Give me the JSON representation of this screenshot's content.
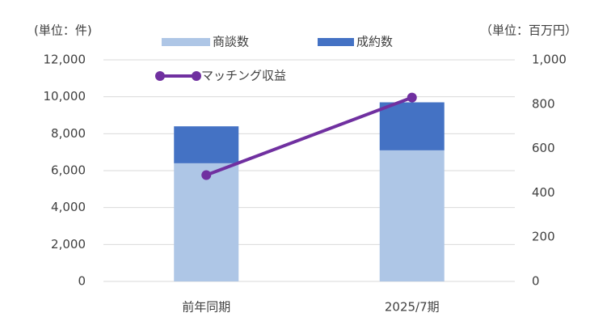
{
  "chart_data": {
    "type": "stacked_bar_line",
    "y_label": "(単位：件)",
    "y2_label": "（単位：百万円）",
    "categories": [
      "前年同期",
      "2025/7期"
    ],
    "series": [
      {
        "name": "商談数",
        "color": "#aec6e6",
        "values": [
          6400,
          7100
        ]
      },
      {
        "name": "成約数",
        "color": "#4472c4",
        "values": [
          2000,
          2600
        ]
      },
      {
        "name": "マッチング収益",
        "color": "#7030a0",
        "values": [
          480,
          830
        ],
        "axis": "y2"
      }
    ],
    "ylim": [
      0,
      12000
    ],
    "yticks": [
      0,
      {
        "value": 2000,
        "label": "2,000"
      },
      {
        "value": 4000,
        "label": "4,000"
      },
      {
        "value": 6000,
        "label": "6,000"
      },
      {
        "value": 8000,
        "label": "8,000"
      },
      {
        "value": 10000,
        "label": "10,000"
      },
      {
        "value": 12000,
        "label": "12,000"
      }
    ],
    "y2lim": [
      0,
      1000
    ],
    "y2ticks": [
      0,
      200,
      400,
      600,
      800,
      {
        "value": 1000,
        "label": "1,000"
      }
    ],
    "grid": true
  }
}
